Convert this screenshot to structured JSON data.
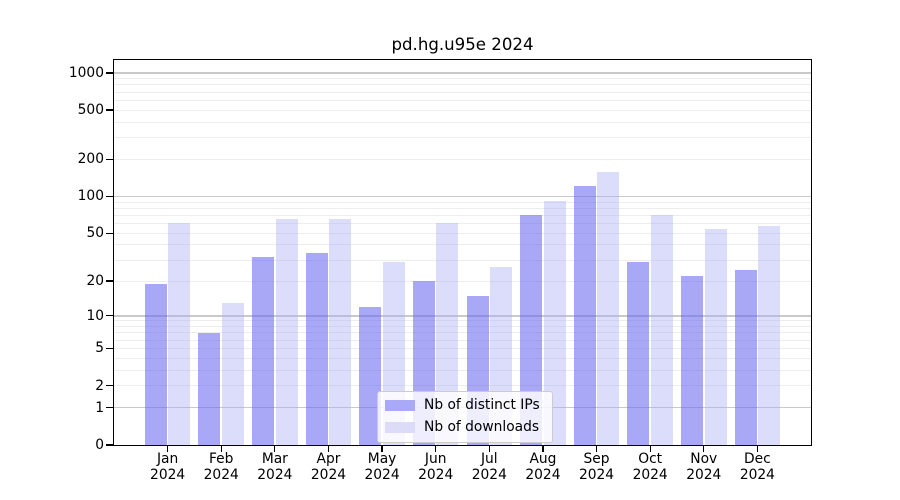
{
  "chart_data": {
    "type": "bar",
    "title": "pd.hg.u95e 2024",
    "year_label": "2024",
    "categories": [
      "Jan",
      "Feb",
      "Mar",
      "Apr",
      "May",
      "Jun",
      "Jul",
      "Aug",
      "Sep",
      "Oct",
      "Nov",
      "Dec"
    ],
    "series": [
      {
        "name": "Nb of distinct IPs",
        "color": "#a9a9f7",
        "fill": "rgba(105,105,241,0.58)",
        "values": [
          19,
          7,
          32,
          34,
          12,
          20,
          15,
          70,
          121,
          29,
          22,
          25
        ]
      },
      {
        "name": "Nb of downloads",
        "color": "#dcdcf9",
        "fill": "rgba(172,172,246,0.42)",
        "values": [
          61,
          13,
          66,
          66,
          29,
          61,
          26,
          92,
          158,
          70,
          54,
          57
        ]
      }
    ],
    "y_ticks": [
      0,
      1,
      2,
      5,
      10,
      20,
      50,
      100,
      200,
      500,
      1000
    ],
    "y_scale": "log10(value+1)",
    "ylim": [
      0,
      1270
    ],
    "xlabel": "",
    "ylabel": "",
    "grid": "horizontal",
    "legend_position": "bottom-center",
    "axis_color": "#000000",
    "grid_major_color": "#c9c9c9",
    "grid_minor_color": "#ededed",
    "background_color": "#ffffff"
  }
}
